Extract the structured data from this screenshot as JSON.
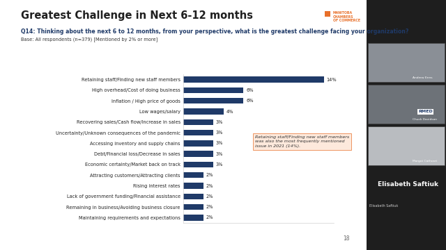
{
  "chart_data": {
    "type": "bar",
    "orientation": "horizontal",
    "title": "Greatest Challenge in Next 6-12 months",
    "subtitle": "Q14: Thinking about the next 6 to 12 months, from your perspective, what is the greatest challenge facing your organization?",
    "note": "Base: All respondents (n=379) [Mentioned by 2% or more]",
    "categories": [
      "Retaining staff/Finding new staff members",
      "High overhead/Cost of doing business",
      "Inflation / High price of goods",
      "Low wages/salary",
      "Recovering sales/Cash flow/Increase in sales",
      "Uncertainty/Unknown consequences of the pandemic",
      "Accessing inventory and supply chains",
      "Debt/Financial loss/Decrease in sales",
      "Economic certainty/Market back on track",
      "Attracting customers/Attracting clients",
      "Rising interest rates",
      "Lack of government funding/Financial assistance",
      "Remaining in business/Avoiding business closure",
      "Maintaining requirements and expectations"
    ],
    "values": [
      14,
      6,
      6,
      4,
      3,
      3,
      3,
      3,
      3,
      2,
      2,
      2,
      2,
      2
    ],
    "value_labels": [
      "14%",
      "6%",
      "6%",
      "4%",
      "3%",
      "3%",
      "3%",
      "3%",
      "3%",
      "2%",
      "2%",
      "2%",
      "2%",
      "2%"
    ],
    "data_labels": true,
    "color": "#1f3a68",
    "xlim": [
      0,
      15
    ],
    "tick_labels": "y",
    "grid": false,
    "annotations": [
      "Retaining staff/Finding new staff members\nwas also the most frequently mentioned\nissue in 2021 (14%)."
    ]
  },
  "slide": {
    "logo": "MANITOBA\nCHAMBERS\nOF COMMERCE",
    "page": "18"
  },
  "participants": {
    "tiles": [
      "Andrew Enns",
      "Chuck Davidson",
      "Margot Cathcart"
    ],
    "tile_logo": "RMED",
    "speaker": "Elisabeth Saftiuk",
    "speaker_label": "Elisabeth Saftiuk"
  }
}
